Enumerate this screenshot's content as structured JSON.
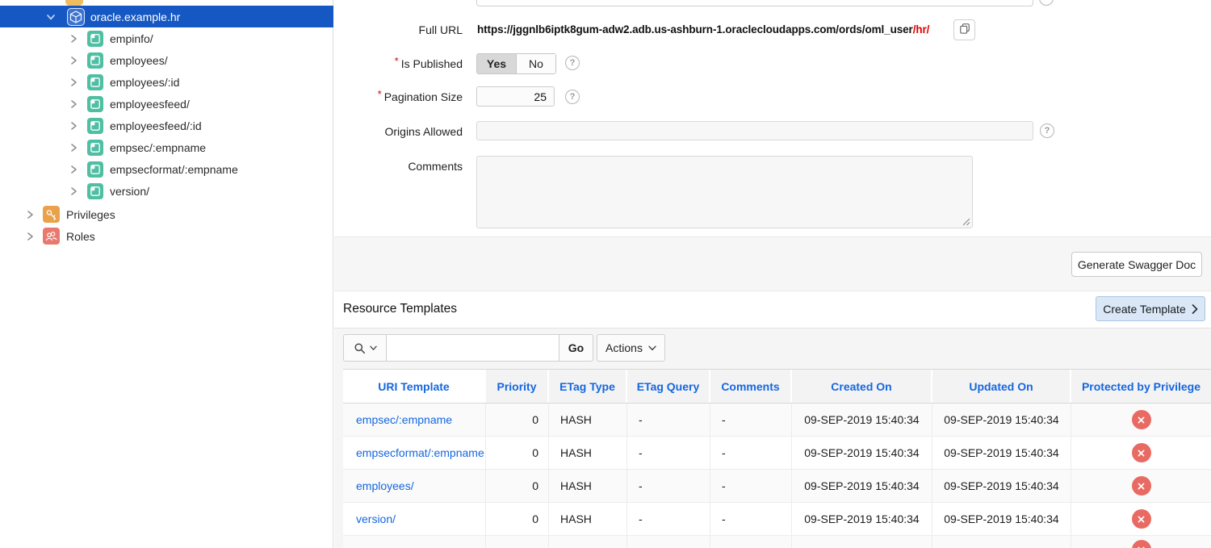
{
  "required_marker": "*",
  "icons": {
    "help": "?"
  },
  "sidebar": {
    "selected_module": "oracle.example.hr",
    "templates": [
      "empinfo/",
      "employees/",
      "employees/:id",
      "employeesfeed/",
      "employeesfeed/:id",
      "empsec/:empname",
      "empsecformat/:empname",
      "version/"
    ],
    "privileges": "Privileges",
    "roles": "Roles"
  },
  "form": {
    "full_url_label": "Full URL",
    "full_url_base": "https://jggnlb6iptk8gum-adw2.adb.us-ashburn-1.oraclecloudapps.com/ords/oml_user",
    "full_url_suffix": "/hr/",
    "is_published_label": "Is Published",
    "published_yes": "Yes",
    "published_no": "No",
    "published_value": "Yes",
    "pagination_label": "Pagination Size",
    "pagination_value": "25",
    "origins_label": "Origins Allowed",
    "origins_value": "",
    "comments_label": "Comments",
    "comments_value": ""
  },
  "buttons": {
    "generate_swagger": "Generate Swagger Doc",
    "create_template": "Create Template",
    "go": "Go",
    "actions": "Actions"
  },
  "toolbar": {
    "search_value": ""
  },
  "resource_templates": {
    "title": "Resource Templates",
    "columns": [
      "URI Template",
      "Priority",
      "ETag Type",
      "ETag Query",
      "Comments",
      "Created On",
      "Updated On",
      "Protected by Privilege"
    ],
    "rows": [
      {
        "uri": "empsec/:empname",
        "priority": "0",
        "etag_type": "HASH",
        "etag_query": "-",
        "comments": "-",
        "created_on": "09-SEP-2019 15:40:34",
        "updated_on": "09-SEP-2019 15:40:34"
      },
      {
        "uri": "empsecformat/:empname",
        "priority": "0",
        "etag_type": "HASH",
        "etag_query": "-",
        "comments": "-",
        "created_on": "09-SEP-2019 15:40:34",
        "updated_on": "09-SEP-2019 15:40:34"
      },
      {
        "uri": "employees/",
        "priority": "0",
        "etag_type": "HASH",
        "etag_query": "-",
        "comments": "-",
        "created_on": "09-SEP-2019 15:40:34",
        "updated_on": "09-SEP-2019 15:40:34"
      },
      {
        "uri": "version/",
        "priority": "0",
        "etag_type": "HASH",
        "etag_query": "-",
        "comments": "-",
        "created_on": "09-SEP-2019 15:40:34",
        "updated_on": "09-SEP-2019 15:40:34"
      }
    ]
  },
  "colors": {
    "selected_blue": "#1658c3",
    "accent_blue": "#1567e0",
    "badge_red": "#e96a62",
    "url_suffix_red": "#e00000",
    "template_teal": "#4fbfa3",
    "privilege_orange": "#e9a24b",
    "roles_salmon": "#e9796e"
  }
}
